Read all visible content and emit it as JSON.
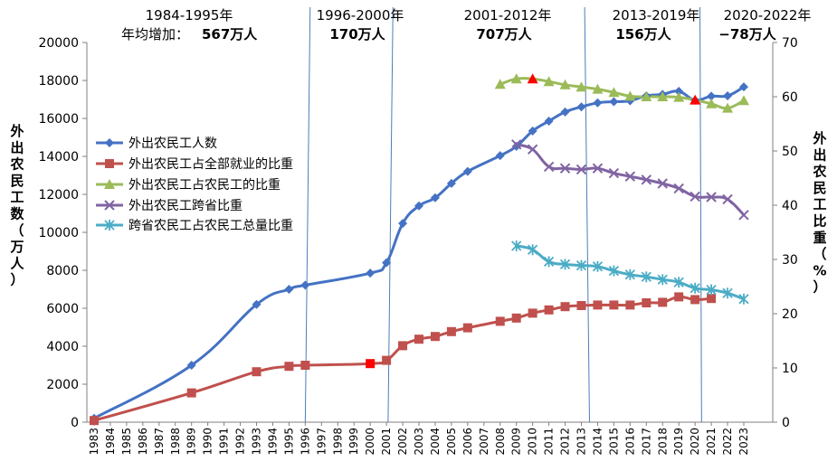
{
  "chart_data": {
    "type": "line",
    "title": "",
    "left_axis_label": "外出农民工数（万人）",
    "right_axis_label": "外出农民工比重（%）",
    "left_ylim": [
      0,
      20000
    ],
    "right_ylim": [
      0,
      70
    ],
    "left_ticks": [
      0,
      2000,
      4000,
      6000,
      8000,
      10000,
      12000,
      14000,
      16000,
      18000,
      20000
    ],
    "right_ticks": [
      0,
      10,
      20,
      30,
      40,
      50,
      60,
      70
    ],
    "categories": [
      "1983",
      "1984",
      "1985",
      "1986",
      "1987",
      "1988",
      "1989",
      "1990",
      "1991",
      "1992",
      "1993",
      "1994",
      "1995",
      "1996",
      "1997",
      "1998",
      "1999",
      "2000",
      "2001",
      "2002",
      "2003",
      "2004",
      "2005",
      "2006",
      "2007",
      "2008",
      "2009",
      "2010",
      "2011",
      "2012",
      "2013",
      "2014",
      "2015",
      "2016",
      "2017",
      "2018",
      "2019",
      "2020",
      "2021",
      "2022",
      "2023"
    ],
    "series": [
      {
        "name": "外出农民工人数",
        "axis": "left",
        "color": "#4472C4",
        "marker": "diamond",
        "points": [
          [
            1983,
            200
          ],
          [
            1989,
            3000
          ],
          [
            1993,
            6200
          ],
          [
            1995,
            7000
          ],
          [
            1996,
            7220
          ],
          [
            2000,
            7850
          ],
          [
            2001,
            8400
          ],
          [
            2002,
            10470
          ],
          [
            2003,
            11390
          ],
          [
            2004,
            11820
          ],
          [
            2005,
            12580
          ],
          [
            2006,
            13210
          ],
          [
            2008,
            14040
          ],
          [
            2009,
            14530
          ],
          [
            2010,
            15340
          ],
          [
            2011,
            15860
          ],
          [
            2012,
            16340
          ],
          [
            2013,
            16610
          ],
          [
            2014,
            16820
          ],
          [
            2015,
            16880
          ],
          [
            2016,
            16930
          ],
          [
            2017,
            17190
          ],
          [
            2018,
            17270
          ],
          [
            2019,
            17430
          ],
          [
            2020,
            16960
          ],
          [
            2021,
            17170
          ],
          [
            2022,
            17190
          ],
          [
            2023,
            17660
          ]
        ]
      },
      {
        "name": "外出农民工占全部就业的比重",
        "axis": "right",
        "color": "#C0504D",
        "marker": "square",
        "points": [
          [
            1983,
            0.3
          ],
          [
            1989,
            5.4
          ],
          [
            1993,
            9.3
          ],
          [
            1995,
            10.3
          ],
          [
            1996,
            10.5
          ],
          [
            2000,
            10.8
          ],
          [
            2001,
            11.4
          ],
          [
            2002,
            14.1
          ],
          [
            2003,
            15.3
          ],
          [
            2004,
            15.8
          ],
          [
            2005,
            16.7
          ],
          [
            2006,
            17.4
          ],
          [
            2008,
            18.6
          ],
          [
            2009,
            19.2
          ],
          [
            2010,
            20.1
          ],
          [
            2011,
            20.7
          ],
          [
            2012,
            21.3
          ],
          [
            2013,
            21.5
          ],
          [
            2014,
            21.6
          ],
          [
            2015,
            21.6
          ],
          [
            2016,
            21.6
          ],
          [
            2017,
            22.0
          ],
          [
            2018,
            22.1
          ],
          [
            2019,
            23.1
          ],
          [
            2020,
            22.6
          ],
          [
            2021,
            22.8
          ]
        ],
        "highlight": [
          2000
        ]
      },
      {
        "name": "外出农民工占农民工的比重",
        "axis": "right",
        "color": "#9BBB59",
        "marker": "triangle",
        "points": [
          [
            2008,
            62.3
          ],
          [
            2009,
            63.3
          ],
          [
            2010,
            63.3
          ],
          [
            2011,
            62.8
          ],
          [
            2012,
            62.2
          ],
          [
            2013,
            61.8
          ],
          [
            2014,
            61.4
          ],
          [
            2015,
            60.8
          ],
          [
            2016,
            60.1
          ],
          [
            2017,
            60.0
          ],
          [
            2018,
            60.0
          ],
          [
            2019,
            59.9
          ],
          [
            2020,
            59.4
          ],
          [
            2021,
            58.7
          ],
          [
            2022,
            57.9
          ],
          [
            2023,
            59.3
          ]
        ],
        "highlight": [
          2010,
          2020
        ]
      },
      {
        "name": "外出农民工跨省比重",
        "axis": "right",
        "color": "#8064A2",
        "marker": "x",
        "points": [
          [
            2009,
            51.2
          ],
          [
            2010,
            50.3
          ],
          [
            2011,
            47.1
          ],
          [
            2012,
            46.8
          ],
          [
            2013,
            46.6
          ],
          [
            2014,
            46.8
          ],
          [
            2015,
            45.9
          ],
          [
            2016,
            45.3
          ],
          [
            2017,
            44.7
          ],
          [
            2018,
            44.0
          ],
          [
            2019,
            43.1
          ],
          [
            2020,
            41.6
          ],
          [
            2021,
            41.5
          ],
          [
            2022,
            41.1
          ],
          [
            2023,
            38.2
          ]
        ]
      },
      {
        "name": "跨省农民工占农民工总量比重",
        "axis": "right",
        "color": "#4BACC6",
        "marker": "star",
        "points": [
          [
            2009,
            32.5
          ],
          [
            2010,
            31.8
          ],
          [
            2011,
            29.6
          ],
          [
            2012,
            29.1
          ],
          [
            2013,
            28.9
          ],
          [
            2014,
            28.7
          ],
          [
            2015,
            27.9
          ],
          [
            2016,
            27.2
          ],
          [
            2017,
            26.8
          ],
          [
            2018,
            26.3
          ],
          [
            2019,
            25.8
          ],
          [
            2020,
            24.7
          ],
          [
            2021,
            24.4
          ],
          [
            2022,
            23.8
          ],
          [
            2023,
            22.7
          ]
        ]
      }
    ],
    "dividers": [
      {
        "x_bottom": 1996.0,
        "x_top": 1996.3
      },
      {
        "x_bottom": 2001.1,
        "x_top": 2001.4
      },
      {
        "x_bottom": 2013.5,
        "x_top": 2013.2
      },
      {
        "x_bottom": 2020.4,
        "x_top": 2020.3
      }
    ],
    "annotations": [
      {
        "period": "1984-1995年",
        "prefix": "年均增加：",
        "value": "567万人"
      },
      {
        "period": "1996-2000年",
        "prefix": "",
        "value": "170万人"
      },
      {
        "period": "2001-2012年",
        "prefix": "",
        "value": "707万人"
      },
      {
        "period": "2013-2019年",
        "prefix": "",
        "value": "156万人"
      },
      {
        "period": "2020-2022年",
        "prefix": "",
        "value": "−78万人"
      }
    ],
    "legend_position": "left-middle"
  },
  "colors": {
    "divider": "#4A7EBB",
    "axis": "#808080",
    "highlight": "#FF0000"
  }
}
